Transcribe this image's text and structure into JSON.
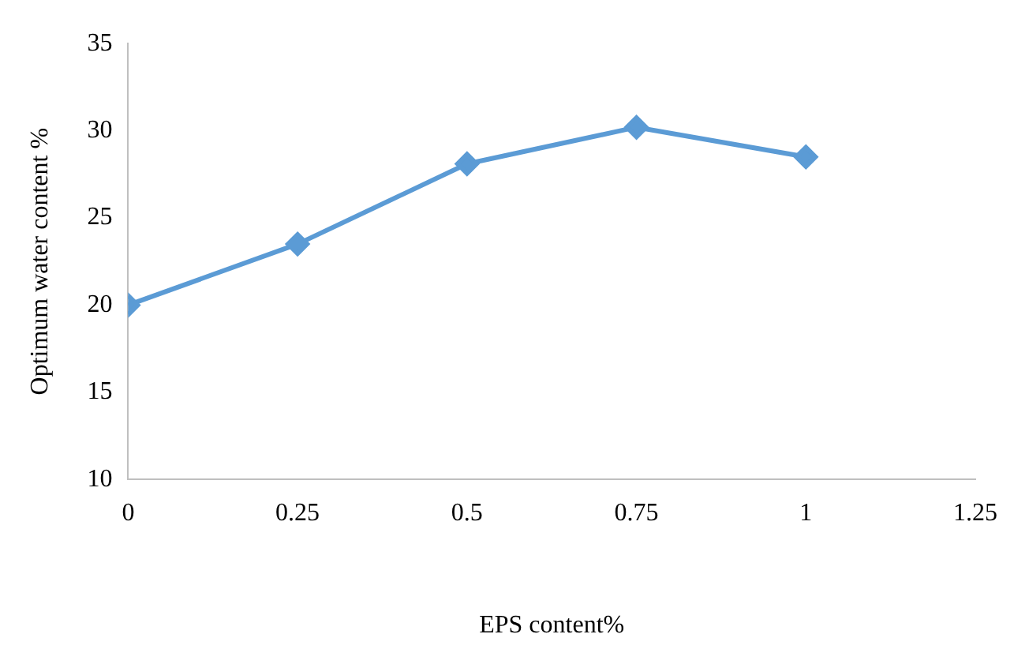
{
  "chart_data": {
    "type": "line",
    "xlabel": "EPS content%",
    "ylabel": "Optimum water content %",
    "x": [
      0,
      0.25,
      0.5,
      0.75,
      1
    ],
    "series": [
      {
        "color": "#5b9bd5",
        "values": [
          20,
          23.5,
          28.1,
          30.2,
          28.5
        ]
      }
    ],
    "xlim": [
      0,
      1.25
    ],
    "xticks": [
      0,
      0.25,
      0.5,
      0.75,
      1,
      1.25
    ],
    "ylim": [
      10,
      35
    ],
    "yticks": [
      10,
      15,
      20,
      25,
      30,
      35
    ],
    "grid": false,
    "legend": false,
    "marker": "diamond",
    "line_style": "solid"
  }
}
